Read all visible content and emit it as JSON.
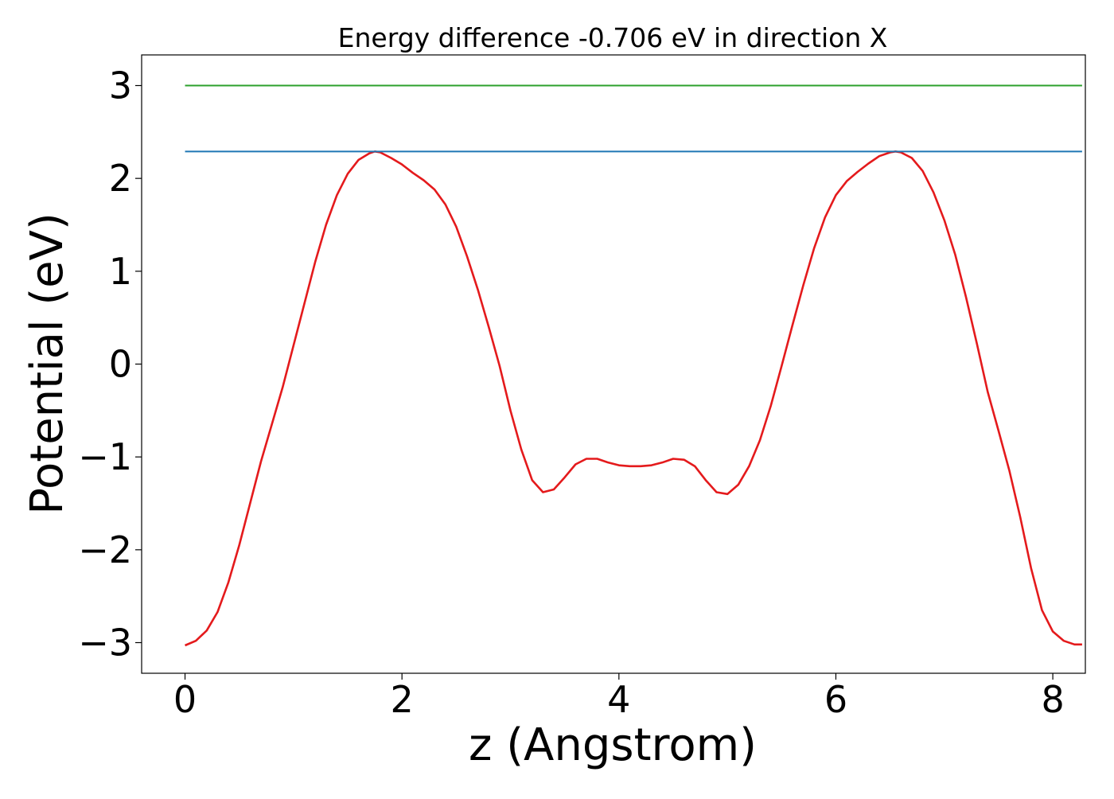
{
  "chart_data": {
    "type": "line",
    "title": "Energy difference -0.706 eV in direction X",
    "xlabel": "z (Angstrom)",
    "ylabel": "Potential (eV)",
    "xlim": [
      -0.4,
      8.3
    ],
    "ylim": [
      -3.33,
      3.33
    ],
    "xticks": [
      0,
      2,
      4,
      6,
      8
    ],
    "yticks": [
      3,
      2,
      1,
      0,
      -1,
      -2,
      -3
    ],
    "xtick_labels": [
      "0",
      "2",
      "4",
      "6",
      "8"
    ],
    "ytick_labels": [
      "3",
      "2",
      "1",
      "0",
      "−1",
      "−2",
      "−3"
    ],
    "grid": false,
    "series": [
      {
        "color": "#e41a1c",
        "style": "solid",
        "x": [
          0.0,
          0.1,
          0.2,
          0.3,
          0.4,
          0.5,
          0.6,
          0.7,
          0.8,
          0.9,
          1.0,
          1.1,
          1.2,
          1.3,
          1.4,
          1.5,
          1.6,
          1.7,
          1.75,
          1.8,
          1.9,
          2.0,
          2.1,
          2.2,
          2.3,
          2.4,
          2.5,
          2.6,
          2.7,
          2.8,
          2.9,
          3.0,
          3.1,
          3.2,
          3.3,
          3.4,
          3.5,
          3.6,
          3.7,
          3.8,
          3.9,
          4.0,
          4.1,
          4.2,
          4.3,
          4.4,
          4.5,
          4.6,
          4.7,
          4.8,
          4.9,
          5.0,
          5.1,
          5.2,
          5.3,
          5.4,
          5.5,
          5.6,
          5.7,
          5.8,
          5.9,
          6.0,
          6.1,
          6.2,
          6.3,
          6.4,
          6.5,
          6.55,
          6.6,
          6.7,
          6.8,
          6.9,
          7.0,
          7.1,
          7.2,
          7.3,
          7.4,
          7.5,
          7.6,
          7.7,
          7.8,
          7.9,
          8.0,
          8.1,
          8.2,
          8.27
        ],
        "y": [
          -3.03,
          -2.98,
          -2.87,
          -2.67,
          -2.35,
          -1.95,
          -1.5,
          -1.05,
          -0.65,
          -0.25,
          0.2,
          0.65,
          1.1,
          1.5,
          1.82,
          2.05,
          2.2,
          2.27,
          2.29,
          2.28,
          2.22,
          2.15,
          2.06,
          1.98,
          1.88,
          1.72,
          1.48,
          1.16,
          0.8,
          0.4,
          -0.02,
          -0.5,
          -0.92,
          -1.25,
          -1.38,
          -1.35,
          -1.22,
          -1.08,
          -1.02,
          -1.02,
          -1.06,
          -1.09,
          -1.1,
          -1.1,
          -1.09,
          -1.06,
          -1.02,
          -1.03,
          -1.1,
          -1.25,
          -1.38,
          -1.4,
          -1.3,
          -1.1,
          -0.82,
          -0.45,
          -0.02,
          0.42,
          0.85,
          1.25,
          1.58,
          1.82,
          1.97,
          2.07,
          2.16,
          2.24,
          2.28,
          2.29,
          2.28,
          2.22,
          2.08,
          1.85,
          1.55,
          1.18,
          0.72,
          0.22,
          -0.3,
          -0.72,
          -1.15,
          -1.65,
          -2.2,
          -2.65,
          -2.88,
          -2.98,
          -3.02,
          -3.02
        ]
      },
      {
        "color": "#1f77b4",
        "style": "solid",
        "x": [
          0.0,
          8.27
        ],
        "y": [
          2.29,
          2.29
        ]
      },
      {
        "color": "#2ca02c",
        "style": "solid",
        "x": [
          0.0,
          8.27
        ],
        "y": [
          3.0,
          3.0
        ]
      }
    ]
  }
}
